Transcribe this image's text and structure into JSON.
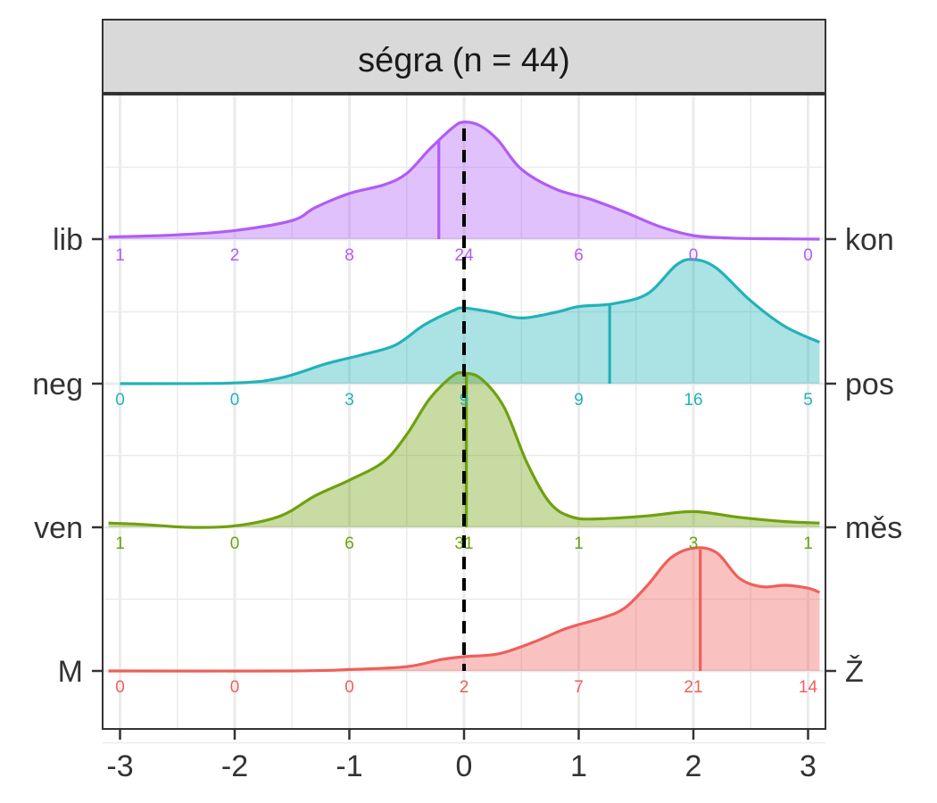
{
  "chart_data": {
    "type": "ridgeline-density",
    "facet_title": "ségra (n = 44)",
    "x_ticks": [
      -3,
      -2,
      -1,
      0,
      1,
      2,
      3
    ],
    "x_tick_labels": [
      "-3",
      "-2",
      "-1",
      "0",
      "1",
      "2",
      "3"
    ],
    "xlim": [
      -3.1,
      3.1
    ],
    "reference_line_x": 0,
    "grid": true,
    "count_positions": [
      -3,
      -2,
      -1,
      0,
      1,
      2,
      3
    ],
    "series": [
      {
        "left_label": "lib",
        "right_label": "kon",
        "color": "#b15cf5",
        "mean": -0.22,
        "counts": [
          "1",
          "2",
          "8",
          "24",
          "6",
          "0",
          "0"
        ],
        "density": [
          [
            -3.1,
            0.015
          ],
          [
            -2.5,
            0.03
          ],
          [
            -2.0,
            0.06
          ],
          [
            -1.5,
            0.13
          ],
          [
            -1.3,
            0.22
          ],
          [
            -1.0,
            0.32
          ],
          [
            -0.7,
            0.38
          ],
          [
            -0.5,
            0.46
          ],
          [
            -0.3,
            0.63
          ],
          [
            -0.1,
            0.78
          ],
          [
            0.0,
            0.82
          ],
          [
            0.15,
            0.79
          ],
          [
            0.3,
            0.69
          ],
          [
            0.5,
            0.49
          ],
          [
            0.8,
            0.35
          ],
          [
            1.1,
            0.28
          ],
          [
            1.4,
            0.19
          ],
          [
            1.7,
            0.09
          ],
          [
            2.0,
            0.025
          ],
          [
            2.3,
            0.008
          ],
          [
            2.6,
            0.003
          ],
          [
            3.1,
            0.0
          ]
        ]
      },
      {
        "left_label": "neg",
        "right_label": "pos",
        "color": "#22b2b8",
        "mean": 1.27,
        "counts": [
          "0",
          "0",
          "3",
          "9",
          "9",
          "16",
          "5"
        ],
        "density": [
          [
            -3.0,
            0.0
          ],
          [
            -2.0,
            0.005
          ],
          [
            -1.6,
            0.04
          ],
          [
            -1.2,
            0.14
          ],
          [
            -0.9,
            0.2
          ],
          [
            -0.6,
            0.27
          ],
          [
            -0.35,
            0.41
          ],
          [
            -0.1,
            0.51
          ],
          [
            0.0,
            0.53
          ],
          [
            0.25,
            0.5
          ],
          [
            0.5,
            0.46
          ],
          [
            0.8,
            0.5
          ],
          [
            1.0,
            0.54
          ],
          [
            1.3,
            0.56
          ],
          [
            1.6,
            0.63
          ],
          [
            1.85,
            0.83
          ],
          [
            2.0,
            0.87
          ],
          [
            2.2,
            0.81
          ],
          [
            2.5,
            0.58
          ],
          [
            2.8,
            0.4
          ],
          [
            3.1,
            0.29
          ]
        ]
      },
      {
        "left_label": "ven",
        "right_label": "měs",
        "color": "#6fa10e",
        "mean": 0.02,
        "counts": [
          "1",
          "0",
          "6",
          "31",
          "1",
          "3",
          "1"
        ],
        "density": [
          [
            -3.1,
            0.03
          ],
          [
            -2.8,
            0.02
          ],
          [
            -2.4,
            0.0
          ],
          [
            -2.0,
            0.01
          ],
          [
            -1.6,
            0.08
          ],
          [
            -1.3,
            0.22
          ],
          [
            -1.0,
            0.33
          ],
          [
            -0.7,
            0.46
          ],
          [
            -0.5,
            0.65
          ],
          [
            -0.3,
            0.9
          ],
          [
            -0.1,
            1.06
          ],
          [
            0.0,
            1.08
          ],
          [
            0.15,
            1.04
          ],
          [
            0.35,
            0.84
          ],
          [
            0.55,
            0.45
          ],
          [
            0.75,
            0.17
          ],
          [
            0.95,
            0.07
          ],
          [
            1.2,
            0.06
          ],
          [
            1.6,
            0.08
          ],
          [
            2.0,
            0.11
          ],
          [
            2.4,
            0.07
          ],
          [
            2.8,
            0.04
          ],
          [
            3.1,
            0.03
          ]
        ]
      },
      {
        "left_label": "M",
        "right_label": "Ž",
        "color": "#ef5f5b",
        "mean": 2.06,
        "counts": [
          "0",
          "0",
          "0",
          "2",
          "7",
          "21",
          "14"
        ],
        "density": [
          [
            -3.1,
            0.0
          ],
          [
            -1.5,
            0.0
          ],
          [
            -1.0,
            0.01
          ],
          [
            -0.5,
            0.03
          ],
          [
            -0.2,
            0.08
          ],
          [
            0.0,
            0.1
          ],
          [
            0.3,
            0.12
          ],
          [
            0.6,
            0.2
          ],
          [
            0.9,
            0.3
          ],
          [
            1.2,
            0.37
          ],
          [
            1.4,
            0.44
          ],
          [
            1.6,
            0.6
          ],
          [
            1.8,
            0.79
          ],
          [
            2.0,
            0.86
          ],
          [
            2.2,
            0.83
          ],
          [
            2.4,
            0.65
          ],
          [
            2.6,
            0.59
          ],
          [
            2.8,
            0.6
          ],
          [
            3.0,
            0.58
          ],
          [
            3.1,
            0.55
          ]
        ]
      }
    ]
  }
}
